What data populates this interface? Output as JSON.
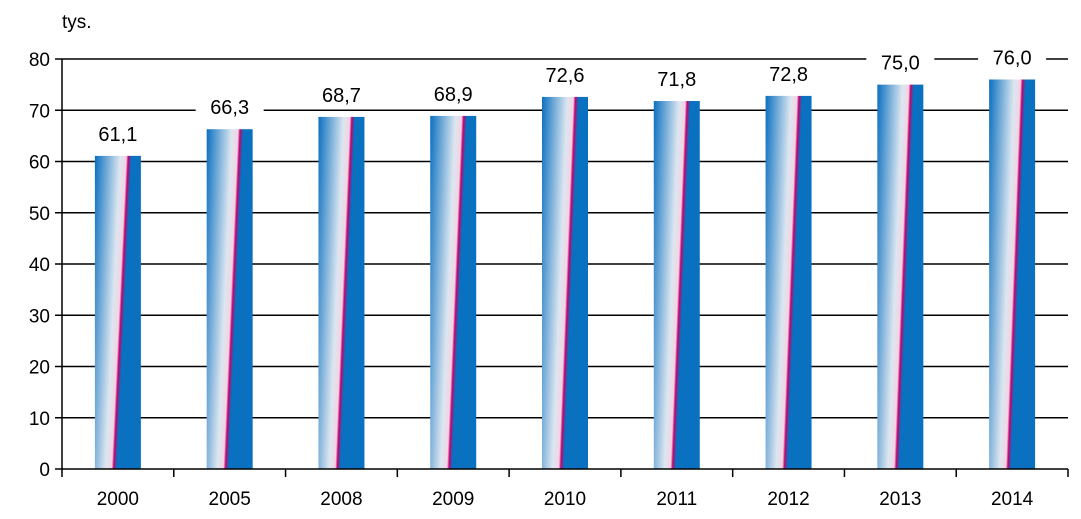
{
  "chart_data": {
    "type": "bar",
    "unit_label": "tys.",
    "title": "",
    "xlabel": "",
    "ylabel": "",
    "categories": [
      "2000",
      "2005",
      "2008",
      "2009",
      "2010",
      "2011",
      "2012",
      "2013",
      "2014"
    ],
    "values": [
      61.1,
      66.3,
      68.7,
      68.9,
      72.6,
      71.8,
      72.8,
      75.0,
      76.0
    ],
    "value_labels": [
      "61,1",
      "66,3",
      "68,7",
      "68,9",
      "72,6",
      "71,8",
      "72,8",
      "75,0",
      "76,0"
    ],
    "ylim": [
      0,
      80
    ],
    "yticks": [
      0,
      10,
      20,
      30,
      40,
      50,
      60,
      70,
      80
    ],
    "grid": true,
    "legend": "none",
    "colors": {
      "bar_dark": "#0a70c0",
      "bar_light": "#dce6f0",
      "bar_accent": "#c8006e",
      "grid": "#000000"
    }
  }
}
